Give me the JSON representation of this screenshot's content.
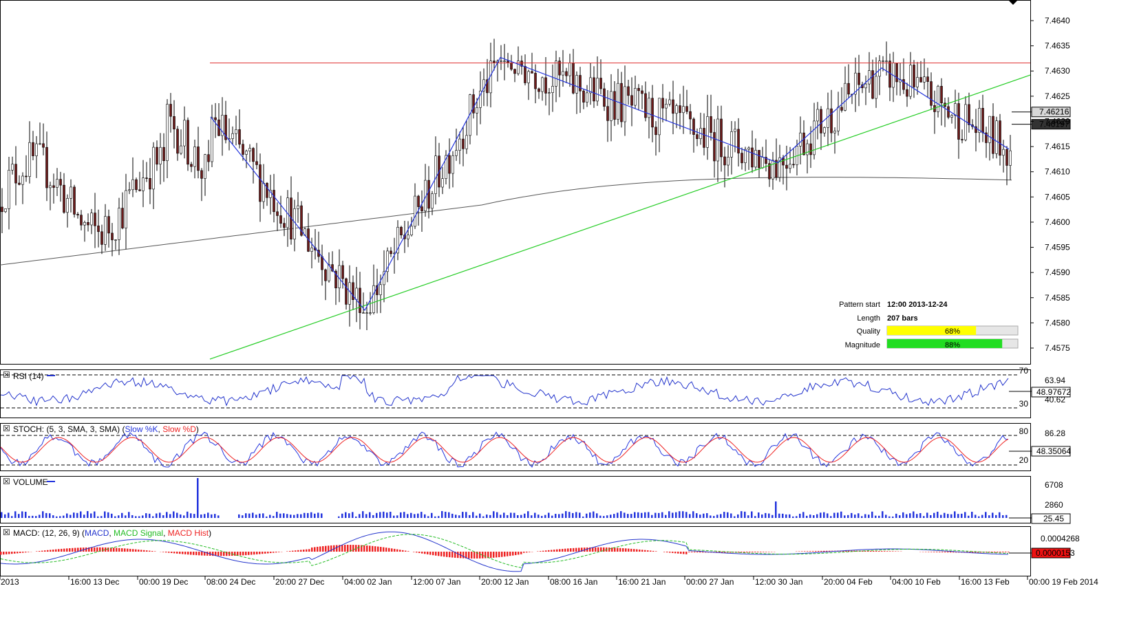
{
  "chart_data": {
    "type": "candlestick",
    "instrument_price_axis": {
      "ticks": [
        "7.4640",
        "7.4635",
        "7.4630",
        "7.4625",
        "7.4620",
        "7.4615",
        "7.4610",
        "7.4605",
        "7.4600",
        "7.4595",
        "7.4590",
        "7.4585",
        "7.4580",
        "7.4575"
      ],
      "range": [
        7.4571,
        7.4644
      ]
    },
    "x_axis_labels": [
      "2013",
      "16:00 13 Dec",
      "00:00 19 Dec",
      "08:00 24 Dec",
      "20:00 27 Dec",
      "04:00 02 Jan",
      "12:00 07 Jan",
      "20:00 12 Jan",
      "08:00 16 Jan",
      "16:00 21 Jan",
      "00:00 27 Jan",
      "12:00 30 Jan",
      "20:00 04 Feb",
      "04:00 10 Feb",
      "16:00 13 Feb",
      "00:00 19 Feb 2014"
    ],
    "price_markers": [
      "7.46216",
      "7.46197"
    ],
    "resistance_level": 7.46316,
    "support_line": {
      "start": 7.45728,
      "end": 7.46292
    },
    "pattern_points": [
      7.46209,
      7.45825,
      7.46327,
      7.46118,
      7.46306,
      7.46145
    ],
    "info_box": {
      "pattern_start_label": "Pattern start",
      "pattern_start_value": "12:00 2013-12-24",
      "length_label": "Length",
      "length_value": "207 bars",
      "quality_label": "Quality",
      "quality_value": "68%",
      "quality_fraction": 0.68,
      "magnitude_label": "Magnitude",
      "magnitude_value": "88%",
      "magnitude_fraction": 0.88
    },
    "indicators": {
      "rsi": {
        "title": "RSI (14)",
        "levels": [
          "70",
          "30"
        ],
        "labels": [
          "63.94",
          "40.62"
        ],
        "current": "48.97672"
      },
      "stoch": {
        "title_prefix": "STOCH: (5, 3, SMA, 3, SMA) (",
        "k_label": "Slow %K",
        "sep": ", ",
        "d_label": "Slow %D",
        "title_suffix": ")",
        "levels": [
          "80",
          "20"
        ],
        "labels": [
          "86.28"
        ],
        "current": "48.35064"
      },
      "volume": {
        "title": "VOLUME",
        "labels": [
          "6708",
          "2860"
        ],
        "current": "25.45"
      },
      "macd": {
        "title_prefix": "MACD: (12, 26, 9) (",
        "macd_label": "MACD",
        "sep": ", ",
        "signal_label": "MACD Signal",
        "hist_label": "MACD Hist",
        "title_suffix": ")",
        "labels": [
          "0.0004268"
        ],
        "current": "0.0000153"
      }
    },
    "colors": {
      "bull": "#ffffff",
      "bear": "#6b1a1a",
      "resistance": "#e03030",
      "support": "#22cc22",
      "pattern": "#2233dd",
      "ma": "#555555",
      "rsi": "#2233cc",
      "stoch_k": "#2233dd",
      "stoch_d": "#ee2222",
      "volume": "#2233dd",
      "macd": "#2233cc",
      "signal": "#22bb22",
      "hist": "#ee2222",
      "quality_bar": "#ffff00",
      "magnitude_bar": "#22dd22"
    }
  }
}
